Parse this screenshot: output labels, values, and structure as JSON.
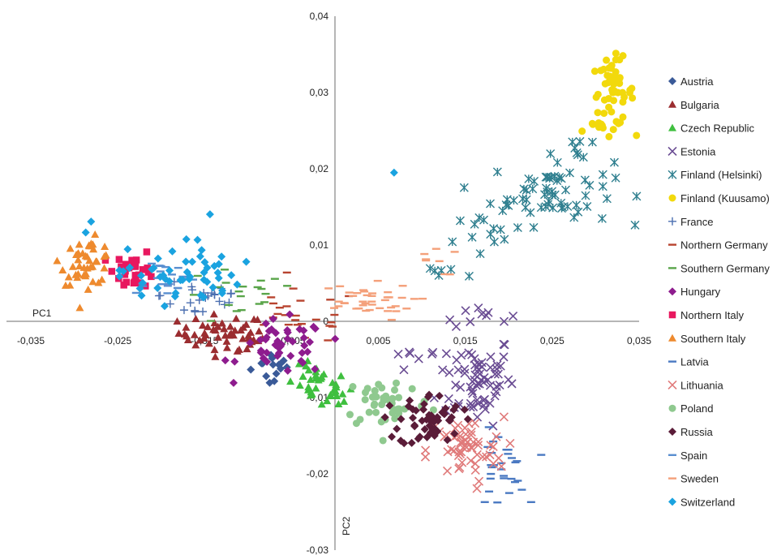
{
  "chart_data": {
    "type": "scatter",
    "title": "",
    "xlabel": "PC1",
    "ylabel": "PC2",
    "xlim": [
      -0.035,
      0.035
    ],
    "ylim": [
      -0.03,
      0.04
    ],
    "x_ticks": [
      -0.035,
      -0.025,
      -0.015,
      -0.005,
      0.005,
      0.015,
      0.025,
      0.035
    ],
    "y_ticks": [
      0.04,
      0.03,
      0.02,
      0.01,
      0,
      -0.01,
      -0.02,
      -0.03
    ],
    "x_tick_labels": [
      "-0,035",
      "-0,025",
      "-0,015",
      "-0,005",
      "0,005",
      "0,015",
      "0,025",
      "0,035"
    ],
    "y_tick_labels": [
      "0,04",
      "0,03",
      "0,02",
      "0,01",
      "0",
      "-0,01",
      "-0,02",
      "-0,03"
    ],
    "grid": false,
    "legend_position": "right",
    "series": [
      {
        "name": "Austria",
        "color": "#3a5a98",
        "marker": "diamond",
        "points": [
          {
            "cx": -0.0068,
            "cy": -0.0058,
            "sx": 0.0014,
            "sy": 0.001,
            "n": 12
          },
          {
            "cx": -0.0075,
            "cy": -0.0075,
            "sx": 0.0006,
            "sy": 0.0005,
            "n": 3
          }
        ]
      },
      {
        "name": "Bulgaria",
        "color": "#9b2d30",
        "marker": "triangle",
        "points": [
          {
            "cx": -0.013,
            "cy": -0.0015,
            "sx": 0.0025,
            "sy": 0.0012,
            "n": 40
          },
          {
            "cx": -0.011,
            "cy": -0.0025,
            "sx": 0.0015,
            "sy": 0.0008,
            "n": 15
          }
        ]
      },
      {
        "name": "Czech Republic",
        "color": "#3fbf3f",
        "marker": "triangle",
        "points": [
          {
            "cx": -0.002,
            "cy": -0.0082,
            "sx": 0.0018,
            "sy": 0.0012,
            "n": 30
          },
          {
            "cx": 0.0,
            "cy": -0.01,
            "sx": 0.0008,
            "sy": 0.0006,
            "n": 8
          }
        ]
      },
      {
        "name": "Estonia",
        "color": "#6a4c93",
        "marker": "x",
        "points": [
          {
            "cx": 0.0162,
            "cy": -0.0075,
            "sx": 0.0022,
            "sy": 0.003,
            "n": 70
          },
          {
            "cx": 0.016,
            "cy": 0.001,
            "sx": 0.002,
            "sy": 0.0008,
            "n": 10
          },
          {
            "cx": 0.01,
            "cy": -0.0045,
            "sx": 0.002,
            "sy": 0.0008,
            "n": 5
          }
        ]
      },
      {
        "name": "Finland (Helsinki)",
        "color": "#2f7f8f",
        "marker": "asterisk",
        "points": [
          {
            "cx": 0.025,
            "cy": 0.017,
            "sx": 0.0035,
            "sy": 0.0022,
            "n": 60
          },
          {
            "cx": 0.0175,
            "cy": 0.011,
            "sx": 0.002,
            "sy": 0.0015,
            "n": 15
          },
          {
            "cx": 0.012,
            "cy": 0.007,
            "sx": 0.001,
            "sy": 0.0008,
            "n": 5
          },
          {
            "cx": 0.0285,
            "cy": 0.023,
            "sx": 0.0012,
            "sy": 0.0012,
            "n": 6
          }
        ]
      },
      {
        "name": "Finland (Kuusamo)",
        "color": "#f2d90c",
        "marker": "circle",
        "points": [
          {
            "cx": 0.032,
            "cy": 0.03,
            "sx": 0.0012,
            "sy": 0.0022,
            "n": 55
          },
          {
            "cx": 0.0295,
            "cy": 0.025,
            "sx": 0.0012,
            "sy": 0.0008,
            "n": 5
          }
        ]
      },
      {
        "name": "France",
        "color": "#4b6fb0",
        "marker": "plus",
        "points": [
          {
            "cx": -0.015,
            "cy": 0.0035,
            "sx": 0.0025,
            "sy": 0.002,
            "n": 25
          }
        ]
      },
      {
        "name": "Northern Germany",
        "color": "#b8442f",
        "marker": "dash",
        "points": [
          {
            "cx": -0.004,
            "cy": 0.0005,
            "sx": 0.0035,
            "sy": 0.0018,
            "n": 25
          }
        ]
      },
      {
        "name": "Southern Germany",
        "color": "#5aa54a",
        "marker": "dash",
        "points": [
          {
            "cx": -0.011,
            "cy": 0.003,
            "sx": 0.0035,
            "sy": 0.002,
            "n": 20
          }
        ]
      },
      {
        "name": "Hungary",
        "color": "#8e1c8e",
        "marker": "diamond",
        "points": [
          {
            "cx": -0.006,
            "cy": -0.0035,
            "sx": 0.0025,
            "sy": 0.0018,
            "n": 45
          }
        ]
      },
      {
        "name": "Northern Italy",
        "color": "#e8185f",
        "marker": "square",
        "points": [
          {
            "cx": -0.023,
            "cy": 0.0068,
            "sx": 0.0012,
            "sy": 0.0012,
            "n": 30
          }
        ]
      },
      {
        "name": "Southern Italy",
        "color": "#ee8a2e",
        "marker": "triangle",
        "points": [
          {
            "cx": -0.0285,
            "cy": 0.0078,
            "sx": 0.0015,
            "sy": 0.0015,
            "n": 45
          }
        ]
      },
      {
        "name": "Latvia",
        "color": "#4a79c2",
        "marker": "dash",
        "points": [
          {
            "cx": 0.019,
            "cy": -0.0195,
            "sx": 0.0015,
            "sy": 0.0025,
            "n": 30
          }
        ]
      },
      {
        "name": "Lithuania",
        "color": "#e07a7a",
        "marker": "x",
        "points": [
          {
            "cx": 0.015,
            "cy": -0.017,
            "sx": 0.0022,
            "sy": 0.0022,
            "n": 60
          }
        ]
      },
      {
        "name": "Poland",
        "color": "#8fc98f",
        "marker": "circle",
        "points": [
          {
            "cx": 0.006,
            "cy": -0.0105,
            "sx": 0.0025,
            "sy": 0.0018,
            "n": 45
          }
        ]
      },
      {
        "name": "Russia",
        "color": "#5a1c38",
        "marker": "diamond",
        "points": [
          {
            "cx": 0.011,
            "cy": -0.013,
            "sx": 0.0018,
            "sy": 0.0018,
            "n": 55
          }
        ]
      },
      {
        "name": "Spain",
        "color": "#5a8fd0",
        "marker": "dash",
        "points": [
          {
            "cx": -0.02,
            "cy": 0.006,
            "sx": 0.002,
            "sy": 0.0012,
            "n": 20
          }
        ]
      },
      {
        "name": "Sweden",
        "color": "#f4a07a",
        "marker": "dash",
        "points": [
          {
            "cx": 0.003,
            "cy": 0.0025,
            "sx": 0.003,
            "sy": 0.0012,
            "n": 40
          },
          {
            "cx": 0.011,
            "cy": 0.008,
            "sx": 0.0015,
            "sy": 0.001,
            "n": 8
          }
        ]
      },
      {
        "name": "Switzerland",
        "color": "#1aa3e0",
        "marker": "diamond",
        "points": [
          {
            "cx": -0.018,
            "cy": 0.006,
            "sx": 0.0035,
            "sy": 0.0018,
            "n": 50
          },
          {
            "cx": -0.02,
            "cy": 0.011,
            "sx": 0.004,
            "sy": 0.0015,
            "n": 6
          },
          {
            "cx": 0.0068,
            "cy": 0.0195,
            "sx": 0.0,
            "sy": 0.0,
            "n": 1
          }
        ]
      }
    ]
  }
}
